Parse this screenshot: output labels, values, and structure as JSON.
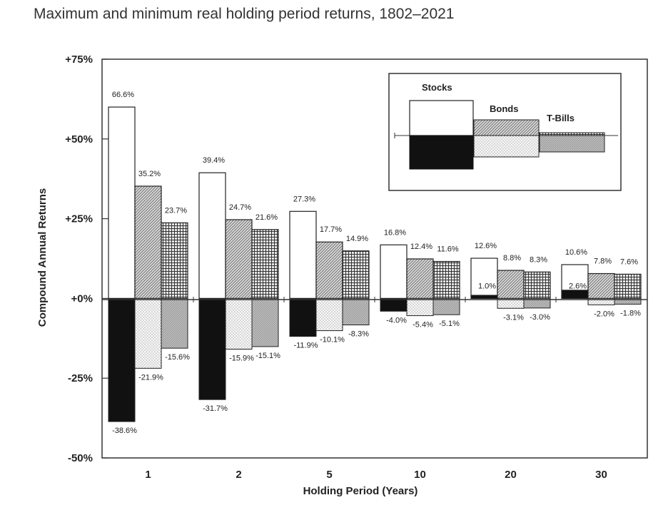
{
  "chart_data": {
    "type": "bar",
    "title": "Maximum and minimum real holding period returns, 1802–2021",
    "xlabel": "Holding Period (Years)",
    "ylabel": "Compound Annual Returns",
    "ylim": [
      -50,
      75
    ],
    "y_ticks": [
      "+75%",
      "+50%",
      "+25%",
      "+0%",
      "-25%",
      "-50%"
    ],
    "y_tick_values": [
      75,
      50,
      25,
      0,
      -25,
      -50
    ],
    "categories": [
      "1",
      "2",
      "5",
      "10",
      "20",
      "30"
    ],
    "series": [
      {
        "name": "Stocks",
        "max": [
          66.6,
          39.4,
          27.3,
          16.8,
          12.6,
          10.6
        ],
        "min": [
          -38.6,
          -31.7,
          -11.9,
          -4.0,
          1.0,
          2.6
        ],
        "max_labels": [
          "66.6%",
          "39.4%",
          "27.3%",
          "16.8%",
          "12.6%",
          "10.6%"
        ],
        "min_labels": [
          "-38.6%",
          "-31.7%",
          "-11.9%",
          "-4.0%",
          "1.0%",
          "2.6%"
        ]
      },
      {
        "name": "Bonds",
        "max": [
          35.2,
          24.7,
          17.7,
          12.4,
          8.8,
          7.8
        ],
        "min": [
          -21.9,
          -15.9,
          -10.1,
          -5.4,
          -3.1,
          -2.0
        ],
        "max_labels": [
          "35.2%",
          "24.7%",
          "17.7%",
          "12.4%",
          "8.8%",
          "7.8%"
        ],
        "min_labels": [
          "-21.9%",
          "-15.9%",
          "-10.1%",
          "-5.4%",
          "-3.1%",
          "-2.0%"
        ]
      },
      {
        "name": "T-Bills",
        "max": [
          23.7,
          21.6,
          14.9,
          11.6,
          8.3,
          7.6
        ],
        "min": [
          -15.6,
          -15.1,
          -8.3,
          -5.1,
          -3.0,
          -1.8
        ],
        "max_labels": [
          "23.7%",
          "21.6%",
          "14.9%",
          "11.6%",
          "8.3%",
          "7.6%"
        ],
        "min_labels": [
          "-15.6%",
          "-15.1%",
          "-8.3%",
          "-5.1%",
          "-3.0%",
          "-1.8%"
        ]
      }
    ],
    "legend": {
      "position": "top-right",
      "labels": [
        "Stocks",
        "Bonds",
        "T-Bills"
      ]
    },
    "colors": {
      "stocks_max": "#ffffff",
      "stocks_min": "#111111",
      "frame": "#333333"
    },
    "grid": false
  }
}
